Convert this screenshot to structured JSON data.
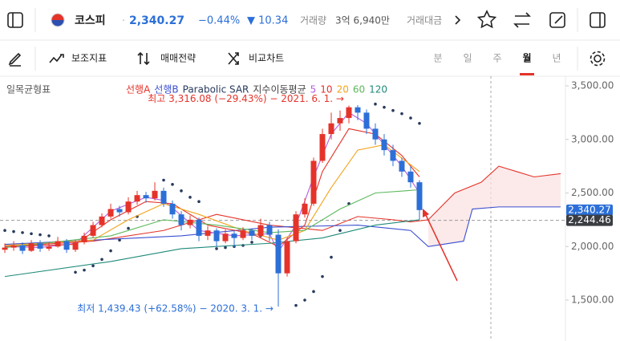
{
  "header": {
    "name": "코스피",
    "price": "2,340.27",
    "change_pct": "−0.44%",
    "change": "▼ 10.34",
    "volume_label": "거래량",
    "volume": "3억 6,940만",
    "amount_label": "거래대금"
  },
  "toolbar": {
    "tools": [
      "보조지표",
      "매매전략",
      "비교차트"
    ],
    "periods": [
      "분",
      "일",
      "주",
      "월",
      "년"
    ],
    "selected_period": 3
  },
  "chart_data": {
    "type": "candlestick",
    "indicator": "일목균형표",
    "ema_label": "지수이동평균",
    "xlim": [
      -0.55,
      63.55
    ],
    "ylim": [
      1118,
      3590
    ],
    "yticks": [
      {
        "value": 3500,
        "label": "3,500.00"
      },
      {
        "value": 3000,
        "label": "3,000.00"
      },
      {
        "value": 2500,
        "label": "2,500.00"
      },
      {
        "value": 2000,
        "label": "2,000.00"
      },
      {
        "value": 1500,
        "label": "1,500.00"
      }
    ],
    "up_color": "#e5332a",
    "down_color": "#2c6fd8",
    "ohlc": [
      [
        1970,
        2030,
        1940,
        1990
      ],
      [
        1990,
        2050,
        1960,
        2010
      ],
      [
        2010,
        2040,
        1930,
        1960
      ],
      [
        1960,
        2060,
        1950,
        2030
      ],
      [
        2030,
        2060,
        1950,
        1980
      ],
      [
        1980,
        2040,
        1960,
        2000
      ],
      [
        2000,
        2090,
        1990,
        2050
      ],
      [
        2050,
        2070,
        1940,
        1970
      ],
      [
        1970,
        2060,
        1950,
        2040
      ],
      [
        2040,
        2130,
        2020,
        2100
      ],
      [
        2100,
        2230,
        2080,
        2200
      ],
      [
        2200,
        2310,
        2180,
        2280
      ],
      [
        2280,
        2400,
        2260,
        2350
      ],
      [
        2350,
        2380,
        2280,
        2320
      ],
      [
        2320,
        2460,
        2300,
        2420
      ],
      [
        2420,
        2520,
        2390,
        2480
      ],
      [
        2480,
        2510,
        2410,
        2450
      ],
      [
        2450,
        2600,
        2430,
        2520
      ],
      [
        2520,
        2550,
        2370,
        2400
      ],
      [
        2400,
        2430,
        2260,
        2300
      ],
      [
        2300,
        2330,
        2150,
        2200
      ],
      [
        2200,
        2290,
        2170,
        2250
      ],
      [
        2250,
        2270,
        2050,
        2100
      ],
      [
        2100,
        2190,
        2060,
        2150
      ],
      [
        2150,
        2170,
        2000,
        2050
      ],
      [
        2050,
        2160,
        2030,
        2120
      ],
      [
        2120,
        2150,
        1990,
        2080
      ],
      [
        2080,
        2180,
        2060,
        2150
      ],
      [
        2150,
        2170,
        2060,
        2100
      ],
      [
        2100,
        2260,
        2090,
        2200
      ],
      [
        2200,
        2230,
        2050,
        2110
      ],
      [
        2110,
        2160,
        1439.43,
        1750
      ],
      [
        1750,
        2080,
        1720,
        2050
      ],
      [
        2050,
        2330,
        2030,
        2300
      ],
      [
        2300,
        2450,
        2270,
        2400
      ],
      [
        2400,
        2830,
        2380,
        2800
      ],
      [
        2800,
        3100,
        2780,
        3050
      ],
      [
        3050,
        3250,
        3000,
        3150
      ],
      [
        3150,
        3270,
        3080,
        3200
      ],
      [
        3200,
        3316.08,
        3150,
        3300
      ],
      [
        3300,
        3320,
        3180,
        3250
      ],
      [
        3250,
        3280,
        3050,
        3100
      ],
      [
        3100,
        3150,
        2950,
        3000
      ],
      [
        3000,
        3050,
        2850,
        2900
      ],
      [
        2900,
        2950,
        2750,
        2800
      ],
      [
        2800,
        2830,
        2650,
        2700
      ],
      [
        2700,
        2750,
        2550,
        2600
      ],
      [
        2600,
        2620,
        2250,
        2340.27
      ]
    ],
    "series": [
      {
        "name": "선행A",
        "color": "#e5332a",
        "x": [
          0,
          10,
          18,
          24,
          30,
          36,
          40,
          44,
          46,
          48,
          51,
          54,
          56,
          58,
          60,
          63
        ],
        "values": [
          2000,
          2050,
          2150,
          2300,
          2200,
          2150,
          2280,
          2250,
          2230,
          2250,
          2500,
          2600,
          2750,
          2700,
          2650,
          2680
        ]
      },
      {
        "name": "선행B",
        "color": "#3b4fd1",
        "x": [
          0,
          20,
          30,
          40,
          46,
          48,
          52,
          53,
          56,
          60,
          63
        ],
        "values": [
          2020,
          2100,
          2180,
          2200,
          2150,
          2000,
          2050,
          2350,
          2370,
          2370,
          2370
        ]
      },
      {
        "name": "Parabolic SAR",
        "color": "#283a5c",
        "kind": "dots",
        "x": [
          0,
          1,
          2,
          3,
          4,
          5,
          8,
          9,
          10,
          11,
          12,
          13,
          14,
          15,
          18,
          19,
          20,
          21,
          22,
          24,
          25,
          26,
          27,
          28,
          29,
          30,
          33,
          34,
          35,
          36,
          37,
          38,
          39,
          42,
          43,
          44,
          45,
          46,
          47
        ],
        "values": [
          2150,
          2140,
          2130,
          2120,
          2110,
          2100,
          1760,
          1780,
          1820,
          1880,
          1960,
          2060,
          2170,
          2280,
          2620,
          2580,
          2520,
          2460,
          2420,
          1980,
          1990,
          2000,
          2010,
          2040,
          2100,
          2150,
          1450,
          1500,
          1580,
          1720,
          1900,
          2150,
          2400,
          3330,
          3300,
          3270,
          3240,
          3200,
          3150
        ]
      },
      {
        "name": "5",
        "color": "#b35ee0",
        "x": [
          0,
          4,
          8,
          12,
          16,
          18,
          22,
          26,
          30,
          31,
          33,
          35,
          37,
          39,
          41,
          43,
          45,
          47
        ],
        "values": [
          2000,
          1990,
          2030,
          2330,
          2460,
          2430,
          2150,
          2100,
          2120,
          1950,
          2200,
          2650,
          3050,
          3250,
          3150,
          2950,
          2750,
          2500
        ]
      },
      {
        "name": "10",
        "color": "#e5332a",
        "x": [
          0,
          8,
          12,
          16,
          19,
          23,
          28,
          31,
          34,
          36,
          39,
          42,
          45,
          47
        ],
        "values": [
          2000,
          2020,
          2250,
          2420,
          2400,
          2200,
          2120,
          2000,
          2200,
          2700,
          3100,
          3050,
          2850,
          2650
        ]
      },
      {
        "name": "20",
        "color": "#f2a31b",
        "x": [
          0,
          10,
          14,
          18,
          22,
          27,
          31,
          34,
          37,
          40,
          43,
          47
        ],
        "values": [
          2010,
          2060,
          2250,
          2400,
          2300,
          2150,
          2060,
          2150,
          2550,
          2900,
          2950,
          2700
        ]
      },
      {
        "name": "60",
        "color": "#5cb85c",
        "x": [
          0,
          12,
          18,
          24,
          30,
          34,
          38,
          42,
          47
        ],
        "values": [
          1990,
          2100,
          2250,
          2200,
          2130,
          2150,
          2350,
          2500,
          2530
        ]
      },
      {
        "name": "120",
        "color": "#1f8a7a",
        "x": [
          0,
          12,
          20,
          30,
          36,
          42,
          47
        ],
        "values": [
          1720,
          1860,
          1980,
          2030,
          2080,
          2200,
          2250
        ]
      }
    ],
    "price_labels": [
      {
        "value": 2340.27,
        "label": "2,340.27",
        "color": "#2c6fd8"
      },
      {
        "value": 2244.46,
        "label": "2,244.46",
        "color": "#3a3d42"
      }
    ],
    "annotations": [
      {
        "text": "최고 3,316.08 (−29.43%) − 2021. 6. 1. →",
        "color": "#e5332a",
        "x": 39,
        "value": 3316.08
      },
      {
        "text": "최저 1,439.43 (+62.58%) − 2020. 3. 1. →",
        "color": "#2c6fd8",
        "x": 31,
        "value": 1439.43
      }
    ]
  }
}
